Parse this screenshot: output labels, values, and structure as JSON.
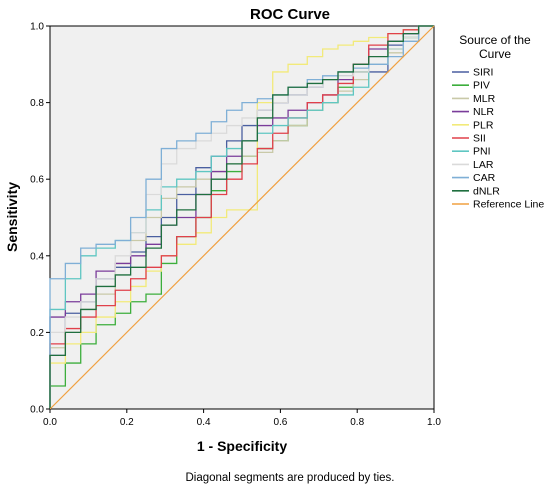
{
  "chart_data": {
    "type": "line",
    "title": "ROC Curve",
    "xlabel": "1 - Specificity",
    "ylabel": "Sensitivity",
    "xlim": [
      0,
      1
    ],
    "ylim": [
      0,
      1
    ],
    "xticks": [
      "0.0",
      "0.2",
      "0.4",
      "0.6",
      "0.8",
      "1.0"
    ],
    "yticks": [
      "0.0",
      "0.2",
      "0.4",
      "0.6",
      "0.8",
      "1.0"
    ],
    "grid": false,
    "legend": {
      "title_lines": [
        "Source of the",
        "Curve"
      ],
      "placement": "right"
    },
    "footnote": "Diagonal segments are produced by ties.",
    "series": [
      {
        "name": "SIRI",
        "color": "#4a5fa0",
        "x": [
          0,
          0,
          0.04,
          0.04,
          0.08,
          0.12,
          0.17,
          0.21,
          0.25,
          0.29,
          0.33,
          0.38,
          0.42,
          0.46,
          0.5,
          0.54,
          0.58,
          0.62,
          0.67,
          0.71,
          0.75,
          0.79,
          0.83,
          0.88,
          0.92,
          0.96,
          1
        ],
        "y": [
          0,
          0.08,
          0.14,
          0.2,
          0.25,
          0.28,
          0.34,
          0.37,
          0.41,
          0.45,
          0.5,
          0.56,
          0.63,
          0.66,
          0.7,
          0.74,
          0.78,
          0.8,
          0.82,
          0.84,
          0.86,
          0.87,
          0.88,
          0.88,
          0.95,
          0.98,
          1
        ]
      },
      {
        "name": "PIV",
        "color": "#3cae3c",
        "x": [
          0,
          0.04,
          0.08,
          0.12,
          0.17,
          0.21,
          0.25,
          0.29,
          0.33,
          0.38,
          0.42,
          0.46,
          0.5,
          0.54,
          0.58,
          0.62,
          0.67,
          0.71,
          0.75,
          0.79,
          0.83,
          0.88,
          0.92,
          0.96,
          1
        ],
        "y": [
          0,
          0.06,
          0.12,
          0.17,
          0.22,
          0.25,
          0.28,
          0.3,
          0.38,
          0.45,
          0.5,
          0.57,
          0.62,
          0.66,
          0.68,
          0.7,
          0.74,
          0.78,
          0.8,
          0.84,
          0.88,
          0.9,
          0.94,
          0.97,
          1
        ]
      },
      {
        "name": "MLR",
        "color": "#c9c9a8",
        "x": [
          0,
          0.04,
          0.08,
          0.12,
          0.17,
          0.21,
          0.25,
          0.29,
          0.33,
          0.38,
          0.42,
          0.46,
          0.5,
          0.54,
          0.58,
          0.62,
          0.67,
          0.71,
          0.75,
          0.79,
          0.83,
          0.88,
          0.92,
          0.96,
          1
        ],
        "y": [
          0,
          0.16,
          0.2,
          0.26,
          0.3,
          0.38,
          0.44,
          0.5,
          0.55,
          0.58,
          0.6,
          0.62,
          0.64,
          0.66,
          0.67,
          0.7,
          0.74,
          0.78,
          0.8,
          0.83,
          0.86,
          0.9,
          0.93,
          0.96,
          1
        ]
      },
      {
        "name": "NLR",
        "color": "#7a3c9a",
        "x": [
          0,
          0.04,
          0.08,
          0.12,
          0.17,
          0.21,
          0.25,
          0.29,
          0.33,
          0.38,
          0.42,
          0.46,
          0.5,
          0.54,
          0.58,
          0.62,
          0.67,
          0.71,
          0.75,
          0.79,
          0.83,
          0.88,
          0.92,
          0.96,
          1
        ],
        "y": [
          0,
          0.24,
          0.28,
          0.3,
          0.36,
          0.38,
          0.4,
          0.43,
          0.48,
          0.5,
          0.56,
          0.62,
          0.66,
          0.7,
          0.74,
          0.76,
          0.78,
          0.8,
          0.82,
          0.86,
          0.9,
          0.94,
          0.96,
          0.98,
          1
        ]
      },
      {
        "name": "PLR",
        "color": "#f2ea7a",
        "x": [
          0,
          0.04,
          0.08,
          0.12,
          0.17,
          0.21,
          0.25,
          0.29,
          0.33,
          0.38,
          0.42,
          0.46,
          0.5,
          0.54,
          0.54,
          0.58,
          0.62,
          0.67,
          0.71,
          0.75,
          0.79,
          0.83,
          0.88,
          0.92,
          0.96,
          1
        ],
        "y": [
          0,
          0.12,
          0.17,
          0.2,
          0.24,
          0.28,
          0.32,
          0.36,
          0.4,
          0.43,
          0.46,
          0.5,
          0.52,
          0.52,
          0.62,
          0.8,
          0.88,
          0.9,
          0.92,
          0.94,
          0.95,
          0.96,
          0.97,
          0.98,
          0.99,
          1
        ]
      },
      {
        "name": "SII",
        "color": "#e0404a",
        "x": [
          0,
          0.04,
          0.08,
          0.12,
          0.17,
          0.21,
          0.25,
          0.29,
          0.33,
          0.38,
          0.42,
          0.46,
          0.5,
          0.54,
          0.58,
          0.62,
          0.67,
          0.71,
          0.75,
          0.79,
          0.83,
          0.88,
          0.92,
          0.96,
          1
        ],
        "y": [
          0,
          0.17,
          0.21,
          0.24,
          0.27,
          0.31,
          0.34,
          0.37,
          0.4,
          0.45,
          0.5,
          0.56,
          0.6,
          0.64,
          0.68,
          0.72,
          0.76,
          0.8,
          0.82,
          0.85,
          0.9,
          0.95,
          0.98,
          0.99,
          1
        ]
      },
      {
        "name": "PNI",
        "color": "#5fc6c2",
        "x": [
          0,
          0.04,
          0.08,
          0.12,
          0.17,
          0.21,
          0.25,
          0.29,
          0.33,
          0.38,
          0.42,
          0.46,
          0.5,
          0.54,
          0.58,
          0.62,
          0.67,
          0.71,
          0.75,
          0.79,
          0.83,
          0.88,
          0.92,
          0.96,
          1
        ],
        "y": [
          0,
          0.26,
          0.34,
          0.4,
          0.42,
          0.44,
          0.46,
          0.52,
          0.58,
          0.6,
          0.62,
          0.66,
          0.68,
          0.7,
          0.72,
          0.74,
          0.76,
          0.78,
          0.8,
          0.82,
          0.84,
          0.9,
          0.94,
          0.97,
          1
        ]
      },
      {
        "name": "LAR",
        "color": "#dadada",
        "x": [
          0,
          0.04,
          0.08,
          0.12,
          0.17,
          0.21,
          0.25,
          0.29,
          0.33,
          0.38,
          0.42,
          0.46,
          0.5,
          0.54,
          0.58,
          0.62,
          0.67,
          0.71,
          0.75,
          0.79,
          0.83,
          0.88,
          0.92,
          0.96,
          1
        ],
        "y": [
          0,
          0.2,
          0.24,
          0.28,
          0.34,
          0.4,
          0.46,
          0.56,
          0.64,
          0.68,
          0.7,
          0.72,
          0.74,
          0.76,
          0.78,
          0.8,
          0.82,
          0.84,
          0.86,
          0.87,
          0.88,
          0.9,
          0.94,
          0.97,
          1
        ]
      },
      {
        "name": "CAR",
        "color": "#7fafd6",
        "x": [
          0,
          0.04,
          0.08,
          0.12,
          0.17,
          0.21,
          0.25,
          0.29,
          0.33,
          0.38,
          0.42,
          0.46,
          0.5,
          0.54,
          0.58,
          0.62,
          0.67,
          0.71,
          0.75,
          0.79,
          0.83,
          0.88,
          0.92,
          0.96,
          1
        ],
        "y": [
          0,
          0.34,
          0.38,
          0.42,
          0.43,
          0.44,
          0.5,
          0.6,
          0.68,
          0.7,
          0.72,
          0.75,
          0.78,
          0.8,
          0.81,
          0.82,
          0.84,
          0.86,
          0.87,
          0.88,
          0.89,
          0.9,
          0.92,
          0.96,
          1
        ]
      },
      {
        "name": "dNLR",
        "color": "#1f6f3f",
        "x": [
          0,
          0,
          0.04,
          0.08,
          0.12,
          0.17,
          0.21,
          0.25,
          0.29,
          0.33,
          0.38,
          0.42,
          0.46,
          0.5,
          0.54,
          0.58,
          0.62,
          0.67,
          0.71,
          0.75,
          0.79,
          0.83,
          0.88,
          0.92,
          0.96,
          1
        ],
        "y": [
          0,
          0.08,
          0.14,
          0.2,
          0.26,
          0.32,
          0.35,
          0.37,
          0.42,
          0.48,
          0.52,
          0.56,
          0.6,
          0.64,
          0.7,
          0.76,
          0.82,
          0.84,
          0.85,
          0.86,
          0.88,
          0.9,
          0.92,
          0.96,
          0.98,
          1
        ]
      },
      {
        "name": "Reference Line",
        "color": "#f0a040",
        "x": [
          0,
          1
        ],
        "y": [
          0,
          1
        ]
      }
    ]
  }
}
